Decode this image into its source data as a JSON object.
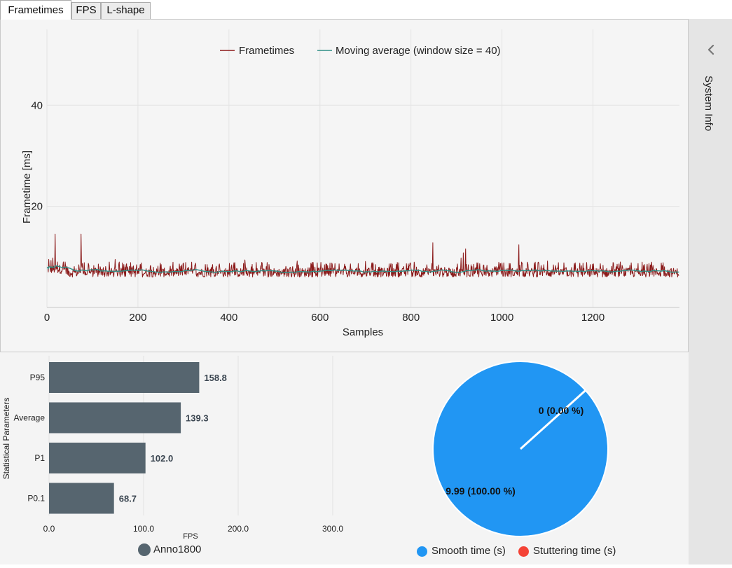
{
  "tabs": [
    {
      "label": "Frametimes",
      "active": true
    },
    {
      "label": "FPS",
      "active": false
    },
    {
      "label": "L-shape",
      "active": false
    }
  ],
  "side_panel": {
    "label": "System Info",
    "icon": "chevron-left-icon"
  },
  "colors": {
    "frametimes": "#8b1a1a",
    "moving_average": "#2f8f86",
    "bar": "#56656f",
    "smooth": "#2196f3",
    "stuttering": "#f44336"
  },
  "chart_data": [
    {
      "type": "line",
      "xlabel": "Samples",
      "ylabel": "Frametime [ms]",
      "xlim": [
        0,
        1390
      ],
      "ylim": [
        0,
        55
      ],
      "x_ticks": [
        "0",
        "200",
        "400",
        "600",
        "800",
        "1000",
        "1200"
      ],
      "y_ticks": [
        "20",
        "40"
      ],
      "grid": true,
      "legend_position": "top-center",
      "series": [
        {
          "name": "Frametimes",
          "sample_count": 1390,
          "baseline_ms": 7.2,
          "range_ms": [
            6.0,
            9.0
          ],
          "spikes": [
            [
              4,
              9.5
            ],
            [
              9,
              9.3
            ],
            [
              13,
              9.8
            ],
            [
              18,
              14.5
            ],
            [
              40,
              9.0
            ],
            [
              75,
              14.5
            ],
            [
              150,
              9.5
            ],
            [
              300,
              8.8
            ],
            [
              435,
              9.4
            ],
            [
              550,
              9.2
            ],
            [
              700,
              9.1
            ],
            [
              848,
              12.8
            ],
            [
              910,
              9.8
            ],
            [
              915,
              10.8
            ],
            [
              920,
              11.6
            ],
            [
              1037,
              12.4
            ],
            [
              1100,
              9.2
            ],
            [
              1260,
              9.0
            ],
            [
              1350,
              8.8
            ]
          ]
        },
        {
          "name": "Moving average (window size = 40)",
          "range_ms": [
            7.0,
            8.5
          ]
        }
      ]
    },
    {
      "type": "bar",
      "orientation": "horizontal",
      "categories": [
        "P95",
        "Average",
        "P1",
        "P0.1"
      ],
      "series": [
        {
          "name": "Anno1800",
          "values": [
            158.8,
            139.3,
            102.0,
            68.7
          ]
        }
      ],
      "value_labels": [
        "158.8",
        "139.3",
        "102.0",
        "68.7"
      ],
      "xlabel": "FPS",
      "ylabel": "Statistical Parameters",
      "xlim": [
        0,
        300
      ],
      "x_ticks": [
        "0.0",
        "100.0",
        "200.0",
        "300.0"
      ],
      "legend_position": "bottom-center"
    },
    {
      "type": "pie",
      "labels": [
        "Smooth time (s)",
        "Stuttering time (s)"
      ],
      "values": [
        9.99,
        0
      ],
      "slice_labels": [
        "9.99 (100.00 %)",
        "0 (0.00 %)"
      ],
      "legend_position": "bottom-center"
    }
  ]
}
